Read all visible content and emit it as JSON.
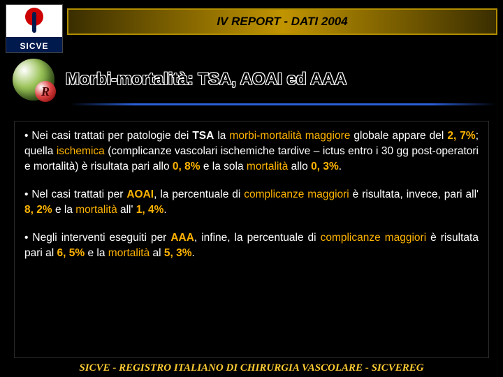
{
  "header": {
    "logo_label": "SICVE",
    "title": "IV REPORT - DATI 2004"
  },
  "sphere": {
    "badge": "R"
  },
  "subtitle": "Morbi-mortalità: TSA, AOAI ed AAA",
  "p1": {
    "t1": "• Nei casi trattati per patologie dei ",
    "tsa": "TSA",
    "t2": " la ",
    "mm": "morbi-mortalità maggiore",
    "t3": " globale appare del ",
    "v1": "2, 7%",
    "t4": "; quella ",
    "isch": "ischemica",
    "t5": " (complicanze vascolari ischemiche tardive – ictus entro i 30 gg post-operatori e mortalità)  è risultata pari allo ",
    "v2": "0, 8%",
    "t6": " e la sola ",
    "mort": "mortalità",
    "t7": " allo ",
    "v3": "0, 3%",
    "t8": "."
  },
  "p2": {
    "t1": "• Nel casi trattati per ",
    "aoai": "AOAI",
    "t2": ", la percentuale di ",
    "cm": "complicanze maggiori",
    "t3": " è risultata, invece, pari all' ",
    "v1": "8, 2%",
    "t4": " e la ",
    "mort": "mortalità",
    "t5": " all' ",
    "v2": "1, 4%",
    "t6": "."
  },
  "p3": {
    "t1": "• Negli interventi eseguiti per ",
    "aaa": "AAA",
    "t2": ", infine, la percentuale di ",
    "cm": "complicanze maggiori",
    "t3": " è risultata pari al ",
    "v1": "6, 5%",
    "t4": " e la ",
    "mort": "mortalità",
    "t5": " al ",
    "v2": "5, 3%",
    "t6": "."
  },
  "footer": "SICVE - REGISTRO ITALIANO DI CHIRURGIA VASCOLARE - SICVEREG",
  "colors": {
    "background": "#000000",
    "highlight": "#ffb400",
    "title_gradient": [
      "#3a2e00",
      "#c19400",
      "#3a2e00"
    ],
    "title_border": "#b08d00",
    "blue_line": "#2a5fd8",
    "footer_color": "#ffcc33",
    "subtitle_outline": "#ffffff",
    "subtitle_text": "#000000"
  },
  "typography": {
    "title_fontsize": 17,
    "subtitle_fontsize": 24,
    "body_fontsize": 15.5,
    "footer_fontsize": 15
  }
}
